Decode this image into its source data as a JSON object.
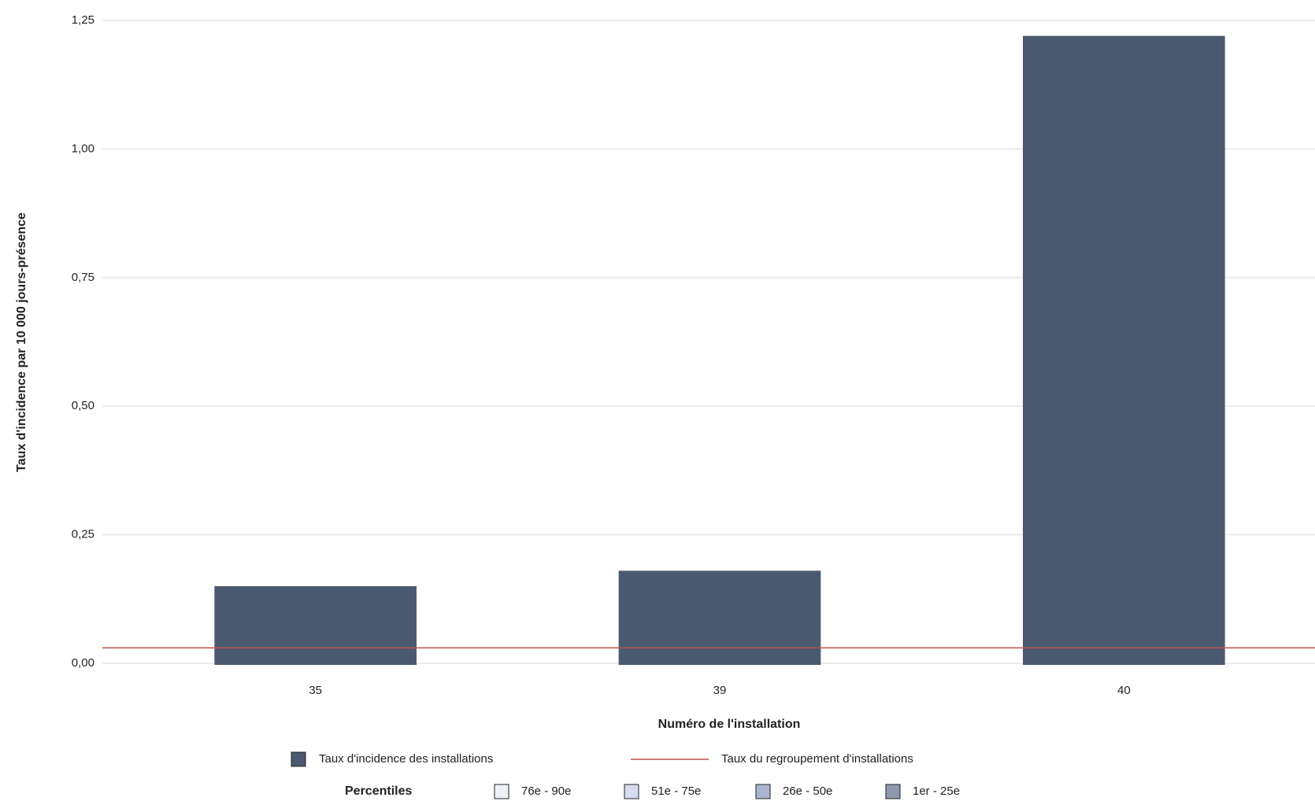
{
  "chart_data": {
    "type": "bar",
    "x_label": "Numéro de l'installation",
    "y_label": "Taux d'incidence par 10 000 jours-présence",
    "categories": [
      "35",
      "39",
      "40"
    ],
    "series": [
      {
        "name": "Taux d'incidence des installations",
        "color": "#4b5a70",
        "values": [
          0.15,
          0.18,
          1.22
        ]
      }
    ],
    "reference_lines": [
      {
        "name": "Taux  du regroupement d'installations",
        "value": 0.03,
        "color": "#c0504d"
      }
    ],
    "ylim": [
      0,
      1.25
    ],
    "yticks": [
      {
        "value": 0,
        "label": "0,00"
      },
      {
        "value": 0.25,
        "label": "0,25"
      },
      {
        "value": 0.5,
        "label": "0,50"
      },
      {
        "value": 0.75,
        "label": "0,75"
      },
      {
        "value": 1,
        "label": "1,00"
      },
      {
        "value": 1.25,
        "label": "1,25"
      }
    ],
    "grid": true,
    "percentile_legend": {
      "title": "Percentiles",
      "items": [
        {
          "label": "76e - 90e",
          "color": "#eef1f8"
        },
        {
          "label": "51e - 75e",
          "color": "#d3dbec"
        },
        {
          "label": "26e - 50e",
          "color": "#aab5cf"
        },
        {
          "label": "1er - 25e",
          "color": "#8e98ae"
        }
      ]
    }
  }
}
